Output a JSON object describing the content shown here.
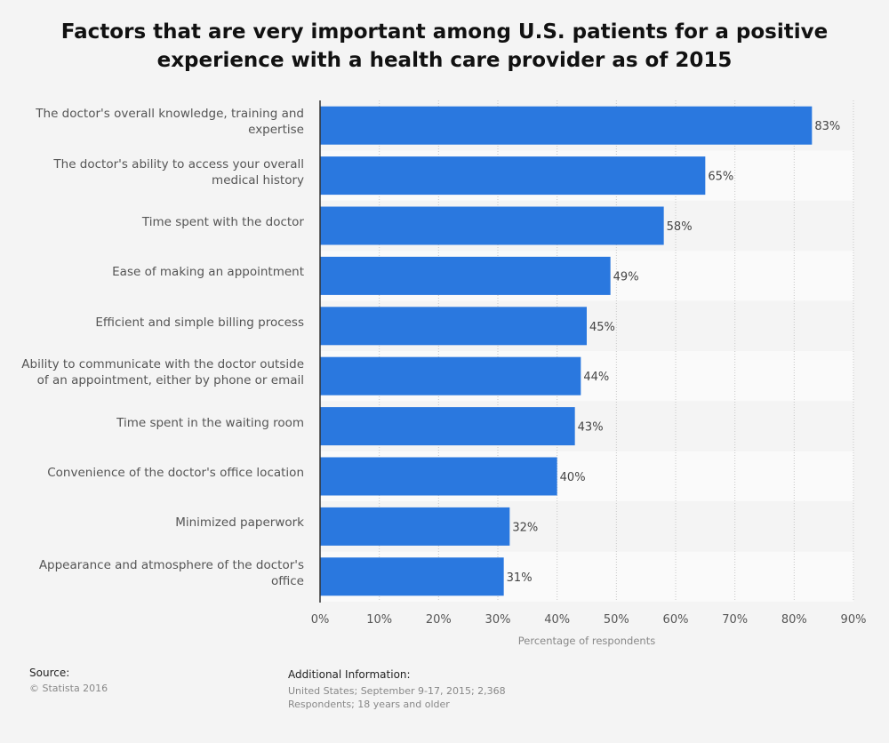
{
  "title": "Factors that are very important among U.S. patients for a positive experience with a health care provider as of 2015",
  "chart_data": {
    "type": "bar",
    "orientation": "horizontal",
    "categories": [
      "The doctor's overall knowledge, training and expertise",
      "The doctor's ability to access your overall medical history",
      "Time spent with the doctor",
      "Ease of making an appointment",
      "Efficient and simple billing process",
      "Ability to communicate with the doctor outside of an appointment, either by phone or email",
      "Time spent in the waiting room",
      "Convenience of the doctor's office location",
      "Minimized paperwork",
      "Appearance and atmosphere of the doctor's office"
    ],
    "values": [
      83,
      65,
      58,
      49,
      45,
      44,
      43,
      40,
      32,
      31
    ],
    "value_labels": [
      "83%",
      "65%",
      "58%",
      "49%",
      "45%",
      "44%",
      "43%",
      "40%",
      "32%",
      "31%"
    ],
    "xlabel": "Percentage of respondents",
    "xlim": [
      0,
      90
    ],
    "xticks": [
      0,
      10,
      20,
      30,
      40,
      50,
      60,
      70,
      80,
      90
    ],
    "xtick_labels": [
      "0%",
      "10%",
      "20%",
      "30%",
      "40%",
      "50%",
      "60%",
      "70%",
      "80%",
      "90%"
    ],
    "grid": true,
    "bar_color": "#2a78df"
  },
  "footer": {
    "source_heading": "Source:",
    "source_text": "© Statista 2016",
    "info_heading": "Additional Information:",
    "info_text": "United States; September 9-17, 2015; 2,368 Respondents; 18 years and older"
  }
}
